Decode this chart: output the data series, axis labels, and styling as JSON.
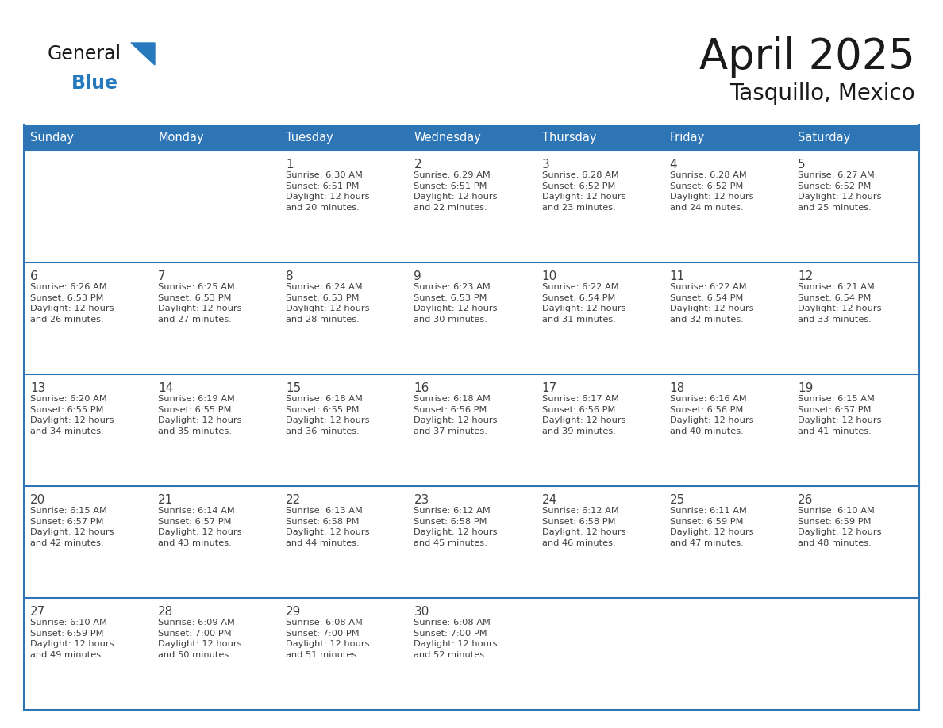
{
  "title": "April 2025",
  "subtitle": "Tasquillo, Mexico",
  "header_bg": "#2E75B6",
  "header_text_color": "#FFFFFF",
  "border_color": "#2E75B6",
  "text_color": "#404040",
  "days_of_week": [
    "Sunday",
    "Monday",
    "Tuesday",
    "Wednesday",
    "Thursday",
    "Friday",
    "Saturday"
  ],
  "weeks": [
    [
      {
        "day": "",
        "info": ""
      },
      {
        "day": "",
        "info": ""
      },
      {
        "day": "1",
        "info": "Sunrise: 6:30 AM\nSunset: 6:51 PM\nDaylight: 12 hours\nand 20 minutes."
      },
      {
        "day": "2",
        "info": "Sunrise: 6:29 AM\nSunset: 6:51 PM\nDaylight: 12 hours\nand 22 minutes."
      },
      {
        "day": "3",
        "info": "Sunrise: 6:28 AM\nSunset: 6:52 PM\nDaylight: 12 hours\nand 23 minutes."
      },
      {
        "day": "4",
        "info": "Sunrise: 6:28 AM\nSunset: 6:52 PM\nDaylight: 12 hours\nand 24 minutes."
      },
      {
        "day": "5",
        "info": "Sunrise: 6:27 AM\nSunset: 6:52 PM\nDaylight: 12 hours\nand 25 minutes."
      }
    ],
    [
      {
        "day": "6",
        "info": "Sunrise: 6:26 AM\nSunset: 6:53 PM\nDaylight: 12 hours\nand 26 minutes."
      },
      {
        "day": "7",
        "info": "Sunrise: 6:25 AM\nSunset: 6:53 PM\nDaylight: 12 hours\nand 27 minutes."
      },
      {
        "day": "8",
        "info": "Sunrise: 6:24 AM\nSunset: 6:53 PM\nDaylight: 12 hours\nand 28 minutes."
      },
      {
        "day": "9",
        "info": "Sunrise: 6:23 AM\nSunset: 6:53 PM\nDaylight: 12 hours\nand 30 minutes."
      },
      {
        "day": "10",
        "info": "Sunrise: 6:22 AM\nSunset: 6:54 PM\nDaylight: 12 hours\nand 31 minutes."
      },
      {
        "day": "11",
        "info": "Sunrise: 6:22 AM\nSunset: 6:54 PM\nDaylight: 12 hours\nand 32 minutes."
      },
      {
        "day": "12",
        "info": "Sunrise: 6:21 AM\nSunset: 6:54 PM\nDaylight: 12 hours\nand 33 minutes."
      }
    ],
    [
      {
        "day": "13",
        "info": "Sunrise: 6:20 AM\nSunset: 6:55 PM\nDaylight: 12 hours\nand 34 minutes."
      },
      {
        "day": "14",
        "info": "Sunrise: 6:19 AM\nSunset: 6:55 PM\nDaylight: 12 hours\nand 35 minutes."
      },
      {
        "day": "15",
        "info": "Sunrise: 6:18 AM\nSunset: 6:55 PM\nDaylight: 12 hours\nand 36 minutes."
      },
      {
        "day": "16",
        "info": "Sunrise: 6:18 AM\nSunset: 6:56 PM\nDaylight: 12 hours\nand 37 minutes."
      },
      {
        "day": "17",
        "info": "Sunrise: 6:17 AM\nSunset: 6:56 PM\nDaylight: 12 hours\nand 39 minutes."
      },
      {
        "day": "18",
        "info": "Sunrise: 6:16 AM\nSunset: 6:56 PM\nDaylight: 12 hours\nand 40 minutes."
      },
      {
        "day": "19",
        "info": "Sunrise: 6:15 AM\nSunset: 6:57 PM\nDaylight: 12 hours\nand 41 minutes."
      }
    ],
    [
      {
        "day": "20",
        "info": "Sunrise: 6:15 AM\nSunset: 6:57 PM\nDaylight: 12 hours\nand 42 minutes."
      },
      {
        "day": "21",
        "info": "Sunrise: 6:14 AM\nSunset: 6:57 PM\nDaylight: 12 hours\nand 43 minutes."
      },
      {
        "day": "22",
        "info": "Sunrise: 6:13 AM\nSunset: 6:58 PM\nDaylight: 12 hours\nand 44 minutes."
      },
      {
        "day": "23",
        "info": "Sunrise: 6:12 AM\nSunset: 6:58 PM\nDaylight: 12 hours\nand 45 minutes."
      },
      {
        "day": "24",
        "info": "Sunrise: 6:12 AM\nSunset: 6:58 PM\nDaylight: 12 hours\nand 46 minutes."
      },
      {
        "day": "25",
        "info": "Sunrise: 6:11 AM\nSunset: 6:59 PM\nDaylight: 12 hours\nand 47 minutes."
      },
      {
        "day": "26",
        "info": "Sunrise: 6:10 AM\nSunset: 6:59 PM\nDaylight: 12 hours\nand 48 minutes."
      }
    ],
    [
      {
        "day": "27",
        "info": "Sunrise: 6:10 AM\nSunset: 6:59 PM\nDaylight: 12 hours\nand 49 minutes."
      },
      {
        "day": "28",
        "info": "Sunrise: 6:09 AM\nSunset: 7:00 PM\nDaylight: 12 hours\nand 50 minutes."
      },
      {
        "day": "29",
        "info": "Sunrise: 6:08 AM\nSunset: 7:00 PM\nDaylight: 12 hours\nand 51 minutes."
      },
      {
        "day": "30",
        "info": "Sunrise: 6:08 AM\nSunset: 7:00 PM\nDaylight: 12 hours\nand 52 minutes."
      },
      {
        "day": "",
        "info": ""
      },
      {
        "day": "",
        "info": ""
      },
      {
        "day": "",
        "info": ""
      }
    ]
  ],
  "figwidth": 11.88,
  "figheight": 9.18,
  "dpi": 100
}
